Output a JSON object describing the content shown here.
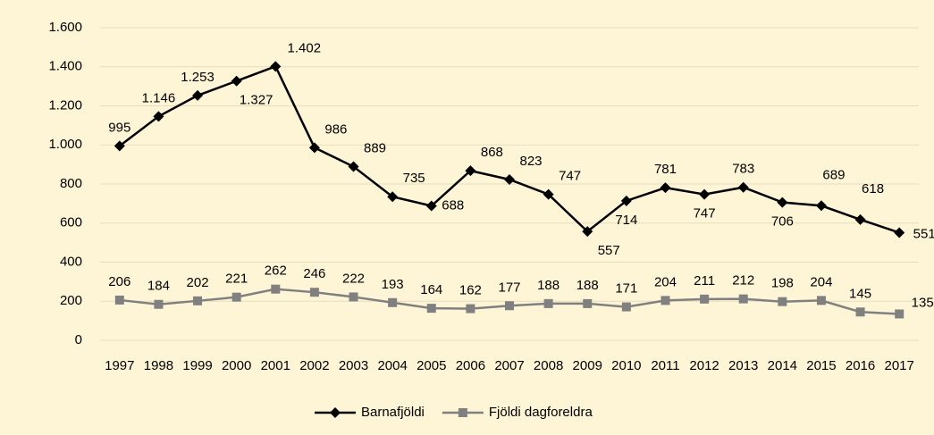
{
  "chart_data": {
    "type": "line",
    "categories": [
      "1997",
      "1998",
      "1999",
      "2000",
      "2001",
      "2002",
      "2003",
      "2004",
      "2005",
      "2006",
      "2007",
      "2008",
      "2009",
      "2010",
      "2011",
      "2012",
      "2013",
      "2014",
      "2015",
      "2016",
      "2017"
    ],
    "series": [
      {
        "name": "Barnafjöldi",
        "color": "#000000",
        "marker": "diamond",
        "values": [
          995,
          1146,
          1253,
          1327,
          1402,
          986,
          889,
          735,
          688,
          868,
          823,
          747,
          557,
          714,
          781,
          747,
          783,
          706,
          689,
          618,
          551
        ],
        "value_labels": [
          "995",
          "1.146",
          "1.253",
          "1.327",
          "1.402",
          "986",
          "889",
          "735",
          "688",
          "868",
          "823",
          "747",
          "557",
          "714",
          "781",
          "747",
          "783",
          "706",
          "689",
          "618",
          "551"
        ]
      },
      {
        "name": "Fjöldi dagforeldra",
        "color": "#808080",
        "marker": "square",
        "values": [
          206,
          184,
          202,
          221,
          262,
          246,
          222,
          193,
          164,
          162,
          177,
          188,
          188,
          171,
          204,
          211,
          212,
          198,
          204,
          145,
          135
        ]
      }
    ],
    "ylim": [
      0,
      1600
    ],
    "yticks": [
      0,
      200,
      400,
      600,
      800,
      {
        "value": 1000,
        "label": "1.000"
      },
      {
        "value": 1200,
        "label": "1.200"
      },
      {
        "value": 1400,
        "label": "1.400"
      },
      {
        "value": 1600,
        "label": "1.600"
      }
    ],
    "grid": true,
    "legend": "bottom"
  }
}
